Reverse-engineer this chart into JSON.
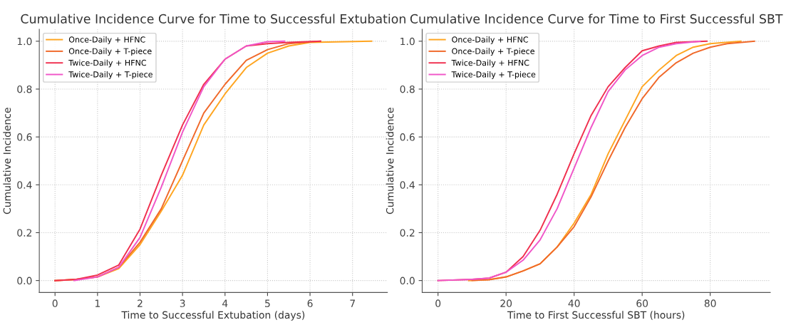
{
  "chart_data": [
    {
      "type": "line",
      "title": "Cumulative Incidence Curve for Time to Successful Extubation",
      "xlabel": "Time to Successful Extubation (days)",
      "ylabel": "Cumulative Incidence",
      "xlim": [
        -0.37,
        7.82
      ],
      "ylim": [
        -0.05,
        1.05
      ],
      "xticks": [
        0,
        1,
        2,
        3,
        4,
        5,
        6,
        7
      ],
      "yticks": [
        {
          "value": 0,
          "label": "0.0"
        },
        {
          "value": 0.2,
          "label": "0.2"
        },
        {
          "value": 0.4,
          "label": "0.4"
        },
        {
          "value": 0.6,
          "label": "0.6"
        },
        {
          "value": 0.8,
          "label": "0.8"
        },
        {
          "value": 1,
          "label": "1.0"
        }
      ],
      "grid": true,
      "legend": "top left",
      "line_style": "solid",
      "marker": "none",
      "series": [
        {
          "name": "Once-Daily + HFNC",
          "color": "#ffa520",
          "x": [
            0,
            0.5,
            1,
            1.5,
            2,
            2.5,
            3,
            3.5,
            4,
            4.5,
            5,
            5.5,
            6,
            7.45
          ],
          "values": [
            0,
            0.005,
            0.015,
            0.05,
            0.15,
            0.29,
            0.44,
            0.65,
            0.78,
            0.89,
            0.95,
            0.98,
            0.995,
            1.0
          ]
        },
        {
          "name": "Once-Daily + T-piece",
          "color": "#f0692a",
          "x": [
            0,
            0.5,
            1,
            1.5,
            2,
            2.5,
            3,
            3.5,
            4,
            4.5,
            5,
            5.5,
            6,
            6.25
          ],
          "values": [
            0,
            0.005,
            0.015,
            0.055,
            0.16,
            0.3,
            0.5,
            0.7,
            0.82,
            0.92,
            0.965,
            0.99,
            0.997,
            1.0
          ]
        },
        {
          "name": "Twice-Daily + HFNC",
          "color": "#f0304f",
          "x": [
            0,
            0.5,
            1,
            1.5,
            2,
            2.5,
            3,
            3.5,
            4,
            4.5,
            5,
            5.5,
            6.25
          ],
          "values": [
            0,
            0.005,
            0.023,
            0.065,
            0.215,
            0.44,
            0.65,
            0.82,
            0.925,
            0.98,
            0.99,
            0.995,
            1.0
          ]
        },
        {
          "name": "Twice-Daily + T-piece",
          "color": "#f056c8",
          "x": [
            0.45,
            1,
            1.5,
            2,
            2.5,
            3,
            3.5,
            4,
            4.5,
            5,
            5.4
          ],
          "values": [
            0,
            0.015,
            0.055,
            0.18,
            0.39,
            0.62,
            0.81,
            0.925,
            0.98,
            0.998,
            1.0
          ]
        }
      ]
    },
    {
      "type": "line",
      "title": "Cumulative Incidence Curve for Time to First Successful SBT",
      "xlabel": "Time to First Successful SBT (hours)",
      "ylabel": "Cumulative Incidence",
      "xlim": [
        -4.65,
        97.65
      ],
      "ylim": [
        -0.05,
        1.05
      ],
      "xticks": [
        0,
        20,
        40,
        60,
        80
      ],
      "yticks": [
        {
          "value": 0,
          "label": "0.0"
        },
        {
          "value": 0.2,
          "label": "0.2"
        },
        {
          "value": 0.4,
          "label": "0.4"
        },
        {
          "value": 0.6,
          "label": "0.6"
        },
        {
          "value": 0.8,
          "label": "0.8"
        },
        {
          "value": 1,
          "label": "1.0"
        }
      ],
      "grid": true,
      "legend": "top left",
      "line_style": "solid",
      "marker": "none",
      "series": [
        {
          "name": "Once-Daily + HFNC",
          "color": "#ffa520",
          "x": [
            9,
            15,
            20,
            25,
            30,
            35,
            40,
            45,
            50,
            55,
            60,
            65,
            70,
            75,
            80,
            89
          ],
          "values": [
            0,
            0.004,
            0.015,
            0.04,
            0.07,
            0.14,
            0.24,
            0.36,
            0.53,
            0.67,
            0.81,
            0.88,
            0.94,
            0.975,
            0.99,
            1.0
          ]
        },
        {
          "name": "Once-Daily + T-piece",
          "color": "#f0692a",
          "x": [
            10,
            15,
            20,
            25,
            30,
            35,
            40,
            45,
            50,
            55,
            60,
            65,
            70,
            75,
            80,
            85,
            93
          ],
          "values": [
            0,
            0.003,
            0.015,
            0.04,
            0.07,
            0.14,
            0.225,
            0.35,
            0.5,
            0.64,
            0.76,
            0.85,
            0.91,
            0.95,
            0.975,
            0.99,
            1.0
          ]
        },
        {
          "name": "Twice-Daily + HFNC",
          "color": "#f0304f",
          "x": [
            0,
            10,
            15,
            20,
            25,
            30,
            35,
            40,
            45,
            50,
            55,
            60,
            65,
            70,
            79
          ],
          "values": [
            0,
            0.005,
            0.01,
            0.035,
            0.1,
            0.21,
            0.36,
            0.53,
            0.69,
            0.81,
            0.89,
            0.96,
            0.98,
            0.995,
            1.0
          ]
        },
        {
          "name": "Twice-Daily + T-piece",
          "color": "#f056c8",
          "x": [
            0,
            10,
            15,
            20,
            25,
            30,
            35,
            40,
            45,
            50,
            55,
            60,
            65,
            70,
            77
          ],
          "values": [
            0,
            0.005,
            0.01,
            0.035,
            0.085,
            0.17,
            0.3,
            0.47,
            0.64,
            0.79,
            0.88,
            0.94,
            0.975,
            0.99,
            1.0
          ]
        }
      ]
    }
  ]
}
